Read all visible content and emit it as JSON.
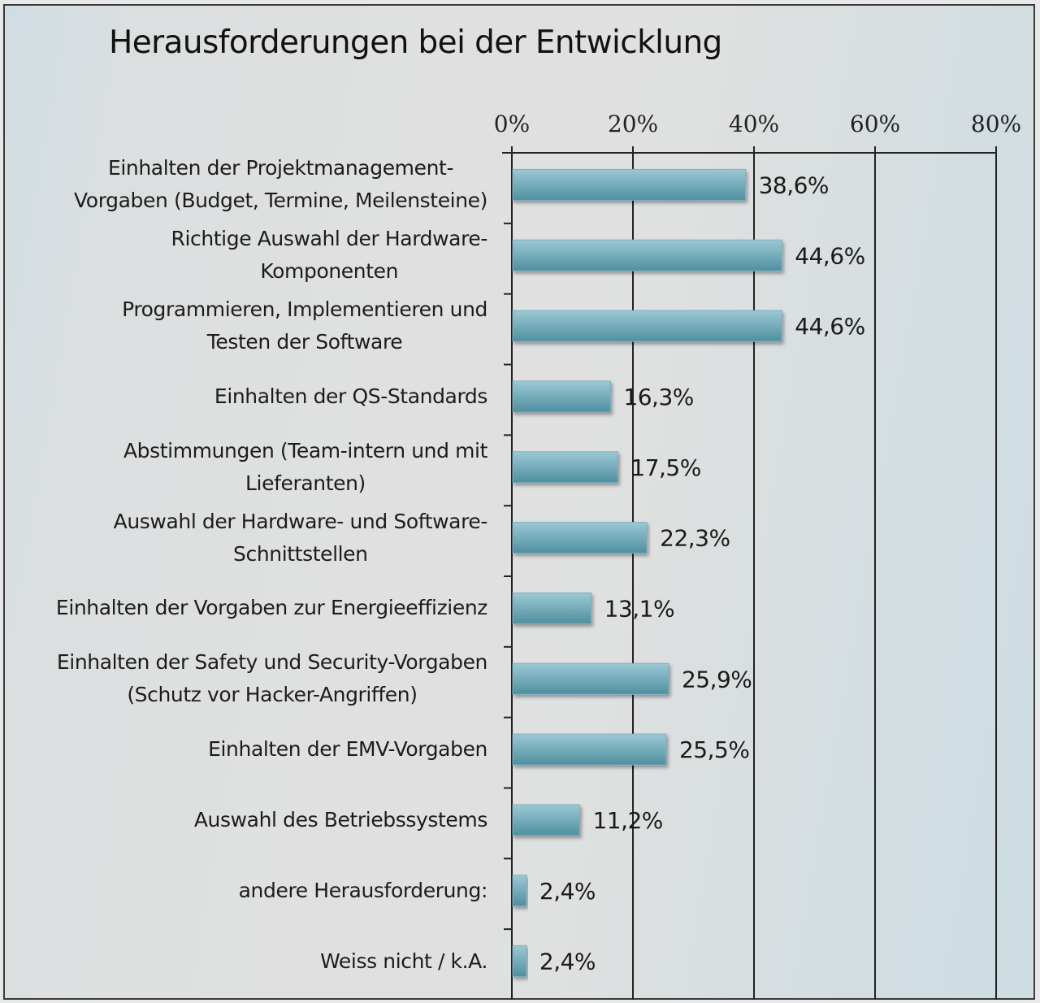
{
  "chart_data": {
    "type": "bar",
    "orientation": "horizontal",
    "title": "Herausforderungen bei der Entwicklung",
    "xlabel": "",
    "ylabel": "",
    "xlim": [
      0,
      80
    ],
    "x_axis_position": "top",
    "x_ticks": [
      0,
      20,
      40,
      60,
      80
    ],
    "x_tick_labels": [
      "0%",
      "20%",
      "40%",
      "60%",
      "80%"
    ],
    "grid": true,
    "legend": "none",
    "categories": [
      [
        "Einhalten der Projektmanagement-",
        "Vorgaben (Budget, Termine, Meilensteine)"
      ],
      [
        "Richtige Auswahl der Hardware-",
        "Komponenten"
      ],
      [
        "Programmieren, Implementieren und",
        "Testen der Software"
      ],
      [
        "Einhalten der QS-Standards"
      ],
      [
        "Abstimmungen (Team-intern und mit",
        "Lieferanten)"
      ],
      [
        "Auswahl der Hardware- und Software-",
        "Schnittstellen"
      ],
      [
        "Einhalten der Vorgaben zur Energieeffizienz"
      ],
      [
        "Einhalten der Safety und Security-Vorgaben",
        "(Schutz vor Hacker-Angriffen)"
      ],
      [
        "Einhalten der EMV-Vorgaben"
      ],
      [
        "Auswahl des Betriebssystems"
      ],
      [
        "andere Herausforderung:"
      ],
      [
        "Weiss nicht / k.A."
      ]
    ],
    "values": [
      38.6,
      44.6,
      44.6,
      16.3,
      17.5,
      22.3,
      13.1,
      25.9,
      25.5,
      11.2,
      2.4,
      2.4
    ],
    "data_labels": [
      "38,6%",
      "44,6%",
      "44,6%",
      "16,3%",
      "17,5%",
      "22,3%",
      "13,1%",
      "25,9%",
      "25,5%",
      "11,2%",
      "2,4%",
      "2,4%"
    ],
    "colors": {
      "bar_top": "#9cc8d4",
      "bar_bottom": "#4f8fa0",
      "grid": "#222222"
    }
  }
}
